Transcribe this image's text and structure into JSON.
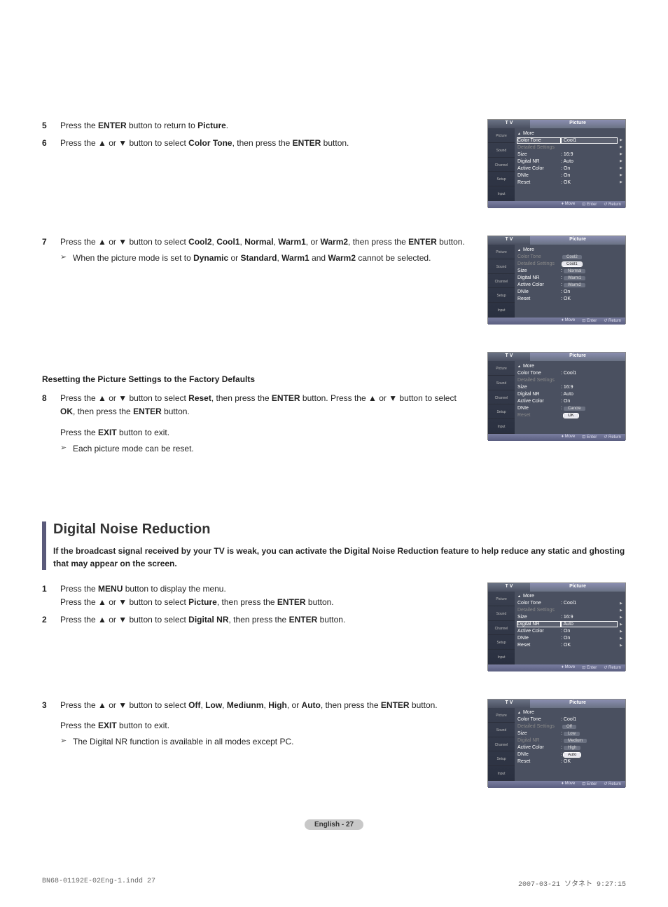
{
  "steps1": [
    {
      "n": "5",
      "html": "Press the <b>ENTER</b> button to return to <b>Picture</b>."
    },
    {
      "n": "6",
      "html": "Press the ▲ or ▼ button to select <b>Color Tone</b>, then press the <b>ENTER</b> button."
    }
  ],
  "step7": {
    "n": "7",
    "html": "Press the ▲ or ▼ button to select <b>Cool2</b>, <b>Cool1</b>, <b>Normal</b>, <b>Warm1</b>, or <b>Warm2</b>, then press the <b>ENTER</b> button.",
    "sub": "When the picture mode is set to <b>Dynamic</b> or <b>Standard</b>, <b>Warm1</b> and <b>Warm2</b> cannot be selected."
  },
  "resetHeading": "Resetting the Picture Settings to the Factory Defaults",
  "step8": {
    "n": "8",
    "html": "Press the ▲ or ▼ button to select <b>Reset</b>, then press the <b>ENTER</b> button. Press the ▲ or ▼ button to select <b>OK</b>, then press the <b>ENTER</b> button.",
    "exit": "Press the <b>EXIT</b> button to exit.",
    "sub": "Each picture mode can be reset."
  },
  "dnr": {
    "title": "Digital Noise Reduction",
    "desc": "If the broadcast signal received by your TV is weak, you can activate the Digital Noise Reduction feature to help reduce any static and ghosting that may appear on the screen."
  },
  "dnrSteps12": [
    {
      "n": "1",
      "html": "Press the <b>MENU</b> button to display the menu.<br>Press the ▲ or ▼ button to select <b>Picture</b>, then press the <b>ENTER</b> button."
    },
    {
      "n": "2",
      "html": "Press the ▲ or ▼ button to select <b>Digital NR</b>, then press the <b>ENTER</b> button."
    }
  ],
  "dnrStep3": {
    "n": "3",
    "html": "Press the ▲ or ▼ button to select <b>Off</b>, <b>Low</b>, <b>Mediunm</b>, <b>High</b>, or <b>Auto</b>, then press the <b>ENTER</b> button.",
    "exit": "Press the <b>EXIT</b> button to exit.",
    "sub": "The Digital NR function is available in all modes except PC."
  },
  "tvCommon": {
    "title_l": "T V",
    "title_r": "Picture",
    "side": [
      "Picture",
      "Sound",
      "Channel",
      "Setup",
      "Input"
    ],
    "foot": {
      "move": "Move",
      "enter": "Enter",
      "return": "Return"
    },
    "more": "More"
  },
  "menu1": {
    "rows": [
      {
        "lbl": "Color Tone",
        "val": ": Cool1",
        "sel": true,
        "arr": true
      },
      {
        "lbl": "Detailed Settings",
        "val": "",
        "dim": true,
        "arr": true
      },
      {
        "lbl": "Size",
        "val": ": 16:9",
        "arr": true
      },
      {
        "lbl": "Digital NR",
        "val": ": Auto",
        "arr": true
      },
      {
        "lbl": "Active Color",
        "val": ": On",
        "arr": true
      },
      {
        "lbl": "DNIe",
        "val": ": On",
        "arr": true
      },
      {
        "lbl": "Reset",
        "val": ": OK",
        "arr": true
      }
    ]
  },
  "menu2": {
    "rows": [
      {
        "lbl": "Color Tone",
        "val": "",
        "dim": true,
        "opts": [
          "Cool2"
        ]
      },
      {
        "lbl": "Detailed Settings",
        "val": "",
        "dim": true,
        "opts": [
          "Cool1"
        ],
        "optsel": true
      },
      {
        "lbl": "Size",
        "val": ":",
        "opts": [
          "Normal"
        ]
      },
      {
        "lbl": "Digital NR",
        "val": ":",
        "opts": [
          "Warm1"
        ],
        "dim2": true
      },
      {
        "lbl": "Active Color",
        "val": ":",
        "opts": [
          "Warm2"
        ],
        "dim2": true
      },
      {
        "lbl": "DNIe",
        "val": ": On"
      },
      {
        "lbl": "Reset",
        "val": ": OK"
      }
    ]
  },
  "menu3": {
    "rows": [
      {
        "lbl": "Color Tone",
        "val": ": Cool1"
      },
      {
        "lbl": "Detailed Settings",
        "val": "",
        "dim": true
      },
      {
        "lbl": "Size",
        "val": ": 16:9"
      },
      {
        "lbl": "Digital NR",
        "val": ": Auto"
      },
      {
        "lbl": "Active Color",
        "val": ": On"
      },
      {
        "lbl": "DNIe",
        "val": ":",
        "opts": [
          "Cancle"
        ]
      },
      {
        "lbl": "Reset",
        "val": ":",
        "dim": true,
        "opts": [
          "OK"
        ],
        "optsel": true
      }
    ]
  },
  "menu4": {
    "rows": [
      {
        "lbl": "Color Tone",
        "val": ": Cool1",
        "arr": true
      },
      {
        "lbl": "Detailed Settings",
        "val": "",
        "dim": true,
        "arr": true
      },
      {
        "lbl": "Size",
        "val": ": 16:9",
        "arr": true
      },
      {
        "lbl": "Digital NR",
        "val": ": Auto",
        "sel": true,
        "arr": true
      },
      {
        "lbl": "Active Color",
        "val": ": On",
        "arr": true
      },
      {
        "lbl": "DNIe",
        "val": ": On",
        "arr": true
      },
      {
        "lbl": "Reset",
        "val": ": OK",
        "arr": true
      }
    ]
  },
  "menu5": {
    "rows": [
      {
        "lbl": "Color Tone",
        "val": ": Cool1"
      },
      {
        "lbl": "Detailed Settings",
        "val": "",
        "dim": true,
        "opts": [
          "Off"
        ]
      },
      {
        "lbl": "Size",
        "val": ":",
        "opts": [
          "Low"
        ]
      },
      {
        "lbl": "Digital NR",
        "val": ":",
        "dim": true,
        "opts": [
          "Medium"
        ]
      },
      {
        "lbl": "Active Color",
        "val": ":",
        "opts": [
          "High"
        ]
      },
      {
        "lbl": "DNIe",
        "val": ":",
        "opts": [
          "Auto"
        ],
        "optsel": true
      },
      {
        "lbl": "Reset",
        "val": ": OK"
      }
    ]
  },
  "pageNum": "English - 27",
  "docRef": "BN68-01192E-02Eng-1.indd   27",
  "docDate": "2007-03-21   ソタネト 9:27:15"
}
